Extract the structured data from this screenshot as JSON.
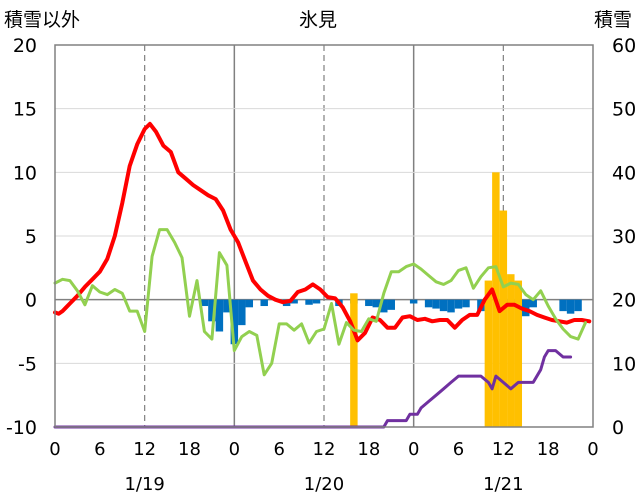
{
  "chart_data": {
    "type": "bar+line",
    "title": "氷見",
    "left_axis_label": "積雪以外",
    "right_axis_label": "積雪",
    "left_ylim": [
      -10,
      20
    ],
    "left_yticks": [
      "20",
      "15",
      "10",
      "5",
      "0",
      "-5",
      "-10"
    ],
    "right_ylim": [
      0,
      60
    ],
    "right_yticks": [
      "60",
      "50",
      "40",
      "30",
      "20",
      "10",
      "0"
    ],
    "x_range_hours": [
      0,
      72
    ],
    "x_tick_labels": [
      "0",
      "6",
      "12",
      "18",
      "0",
      "6",
      "12",
      "18",
      "0",
      "6",
      "12",
      "18",
      "0"
    ],
    "date_labels": [
      "1/19",
      "1/20",
      "1/21"
    ],
    "grid": "vertical lines at 0h (solid) and 12h (dashed) of each day; horizontal line at 0",
    "colors": {
      "red": "#ff0000",
      "green": "#92d050",
      "purple": "#7030a0",
      "blue_bars": "#0070c0",
      "orange_bars": "#ffc000"
    },
    "series": [
      {
        "color_name": "red",
        "axis": "left",
        "kind": "line",
        "points": [
          [
            0,
            -1
          ],
          [
            0.5,
            -1.1
          ],
          [
            1,
            -0.9
          ],
          [
            1.5,
            -0.6
          ],
          [
            2,
            -0.3
          ],
          [
            3,
            0.3
          ],
          [
            4,
            1
          ],
          [
            5,
            1.6
          ],
          [
            6,
            2.2
          ],
          [
            7,
            3.2
          ],
          [
            8,
            5
          ],
          [
            9,
            7.6
          ],
          [
            10,
            10.5
          ],
          [
            11,
            12.2
          ],
          [
            12,
            13.4
          ],
          [
            12.7,
            13.8
          ],
          [
            13.5,
            13.2
          ],
          [
            14.5,
            12.1
          ],
          [
            15.5,
            11.6
          ],
          [
            16.5,
            10
          ],
          [
            17.5,
            9.5
          ],
          [
            18.5,
            9
          ],
          [
            19.5,
            8.6
          ],
          [
            20.5,
            8.2
          ],
          [
            21.5,
            7.9
          ],
          [
            22.5,
            7
          ],
          [
            23.5,
            5.5
          ],
          [
            24.5,
            4.5
          ],
          [
            25.5,
            3
          ],
          [
            26.5,
            1.5
          ],
          [
            27.5,
            0.8
          ],
          [
            28.5,
            0.3
          ],
          [
            29.5,
            0
          ],
          [
            30.5,
            -0.2
          ],
          [
            31.5,
            -0.1
          ],
          [
            32.5,
            0.6
          ],
          [
            33.5,
            0.8
          ],
          [
            34.5,
            1.2
          ],
          [
            35.5,
            0.8
          ],
          [
            36.5,
            0.2
          ],
          [
            37.5,
            0.1
          ],
          [
            38.5,
            -0.6
          ],
          [
            39.5,
            -1.7
          ],
          [
            40.5,
            -3.2
          ],
          [
            41.5,
            -2.6
          ],
          [
            42.5,
            -1.4
          ],
          [
            43.5,
            -1.6
          ],
          [
            44.5,
            -2.2
          ],
          [
            45.5,
            -2.2
          ],
          [
            46.5,
            -1.4
          ],
          [
            47.5,
            -1.3
          ],
          [
            48.5,
            -1.6
          ],
          [
            49.5,
            -1.5
          ],
          [
            50.5,
            -1.7
          ],
          [
            51.5,
            -1.6
          ],
          [
            52.5,
            -1.6
          ],
          [
            53.5,
            -2.2
          ],
          [
            54.5,
            -1.6
          ],
          [
            55.5,
            -1.2
          ],
          [
            56.5,
            -1.2
          ],
          [
            57.5,
            0
          ],
          [
            58.5,
            0.8
          ],
          [
            59.5,
            -0.9
          ],
          [
            60.5,
            -0.4
          ],
          [
            61.5,
            -0.4
          ],
          [
            62.5,
            -0.7
          ],
          [
            63.5,
            -0.9
          ],
          [
            64.5,
            -1.2
          ],
          [
            65.5,
            -1.4
          ],
          [
            66.5,
            -1.6
          ],
          [
            67.5,
            -1.7
          ],
          [
            68.5,
            -1.8
          ],
          [
            69.5,
            -1.6
          ],
          [
            70.5,
            -1.6
          ],
          [
            71.5,
            -1.7
          ]
        ]
      },
      {
        "color_name": "green",
        "axis": "left",
        "kind": "line",
        "points": [
          [
            0,
            1.3
          ],
          [
            1,
            1.6
          ],
          [
            2,
            1.5
          ],
          [
            3,
            0.7
          ],
          [
            4,
            -0.4
          ],
          [
            5,
            1.1
          ],
          [
            6,
            0.6
          ],
          [
            7,
            0.4
          ],
          [
            8,
            0.8
          ],
          [
            9,
            0.5
          ],
          [
            10,
            -0.9
          ],
          [
            11,
            -0.9
          ],
          [
            12,
            -2.5
          ],
          [
            13,
            3.4
          ],
          [
            14,
            5.5
          ],
          [
            15,
            5.5
          ],
          [
            16,
            4.5
          ],
          [
            17,
            3.3
          ],
          [
            18,
            -1.3
          ],
          [
            19,
            1.5
          ],
          [
            20,
            -2.5
          ],
          [
            21,
            -3.1
          ],
          [
            22,
            3.7
          ],
          [
            23,
            2.7
          ],
          [
            24,
            -4
          ],
          [
            25,
            -2.9
          ],
          [
            26,
            -2.5
          ],
          [
            27,
            -2.8
          ],
          [
            28,
            -5.9
          ],
          [
            29,
            -5
          ],
          [
            30,
            -1.9
          ],
          [
            31,
            -1.9
          ],
          [
            32,
            -2.4
          ],
          [
            33,
            -1.9
          ],
          [
            34,
            -3.4
          ],
          [
            35,
            -2.5
          ],
          [
            36,
            -2.3
          ],
          [
            37,
            -0.3
          ],
          [
            38,
            -3.5
          ],
          [
            39,
            -1.8
          ],
          [
            40,
            -2.4
          ],
          [
            41,
            -2.5
          ],
          [
            42,
            -1.5
          ],
          [
            43,
            -1.7
          ],
          [
            44,
            0.5
          ],
          [
            45,
            2.2
          ],
          [
            46,
            2.2
          ],
          [
            47,
            2.6
          ],
          [
            48,
            2.8
          ],
          [
            49,
            2.4
          ],
          [
            50,
            1.9
          ],
          [
            51,
            1.4
          ],
          [
            52,
            1.2
          ],
          [
            53,
            1.5
          ],
          [
            54,
            2.3
          ],
          [
            55,
            2.5
          ],
          [
            56,
            0.9
          ],
          [
            57,
            1.8
          ],
          [
            58,
            2.5
          ],
          [
            59,
            2.6
          ],
          [
            60,
            1
          ],
          [
            61,
            1.3
          ],
          [
            62,
            1.2
          ],
          [
            63,
            0.4
          ],
          [
            64,
            0
          ],
          [
            65,
            0.7
          ],
          [
            66,
            -0.5
          ],
          [
            67,
            -1.5
          ],
          [
            68,
            -2.3
          ],
          [
            69,
            -2.9
          ],
          [
            70,
            -3.1
          ],
          [
            71,
            -1.8
          ]
        ]
      },
      {
        "color_name": "purple",
        "axis": "right",
        "kind": "line",
        "points": [
          [
            0,
            0
          ],
          [
            44,
            0
          ],
          [
            44.5,
            1
          ],
          [
            47,
            1
          ],
          [
            47.5,
            2
          ],
          [
            48.5,
            2
          ],
          [
            49,
            3
          ],
          [
            50,
            4
          ],
          [
            51,
            5
          ],
          [
            52,
            6
          ],
          [
            53,
            7
          ],
          [
            54,
            8
          ],
          [
            55,
            8
          ],
          [
            56,
            8
          ],
          [
            57,
            8
          ],
          [
            58,
            7
          ],
          [
            58.5,
            6
          ],
          [
            59,
            8
          ],
          [
            60,
            7
          ],
          [
            61,
            6
          ],
          [
            62,
            7
          ],
          [
            63,
            7
          ],
          [
            64,
            7
          ],
          [
            65,
            9
          ],
          [
            65.5,
            11
          ],
          [
            66,
            12
          ],
          [
            67,
            12
          ],
          [
            68,
            11
          ],
          [
            69,
            11
          ]
        ]
      },
      {
        "color_name": "blue_bars",
        "axis": "left",
        "kind": "bars",
        "bar_width_hours": 1,
        "bars": [
          [
            20,
            -0.5
          ],
          [
            21,
            -1.7
          ],
          [
            22,
            -2.5
          ],
          [
            23,
            -1
          ],
          [
            24,
            -3.5
          ],
          [
            25,
            -2
          ],
          [
            26,
            -0.6
          ],
          [
            28,
            -0.5
          ],
          [
            31,
            -0.5
          ],
          [
            32,
            -0.3
          ],
          [
            34,
            -0.4
          ],
          [
            35,
            -0.3
          ],
          [
            38,
            -0.5
          ],
          [
            40,
            -0.3
          ],
          [
            42,
            -0.5
          ],
          [
            43,
            -0.6
          ],
          [
            44,
            -1
          ],
          [
            45,
            -0.8
          ],
          [
            48,
            -0.3
          ],
          [
            50,
            -0.6
          ],
          [
            51,
            -0.7
          ],
          [
            52,
            -0.9
          ],
          [
            53,
            -1
          ],
          [
            54,
            -0.7
          ],
          [
            55,
            -0.6
          ],
          [
            57,
            -0.9
          ],
          [
            60,
            -0.4
          ],
          [
            61,
            -0.5
          ],
          [
            62,
            -0.7
          ],
          [
            63,
            -1.3
          ],
          [
            64,
            -0.6
          ],
          [
            68,
            -0.9
          ],
          [
            69,
            -1.1
          ],
          [
            70,
            -0.9
          ]
        ]
      },
      {
        "color_name": "orange_bars",
        "axis": "right",
        "kind": "bars",
        "bar_width_hours": 1,
        "bars": [
          [
            40,
            21
          ],
          [
            58,
            23
          ],
          [
            59,
            40
          ],
          [
            60,
            34
          ],
          [
            61,
            24
          ],
          [
            62,
            23
          ]
        ]
      }
    ]
  }
}
